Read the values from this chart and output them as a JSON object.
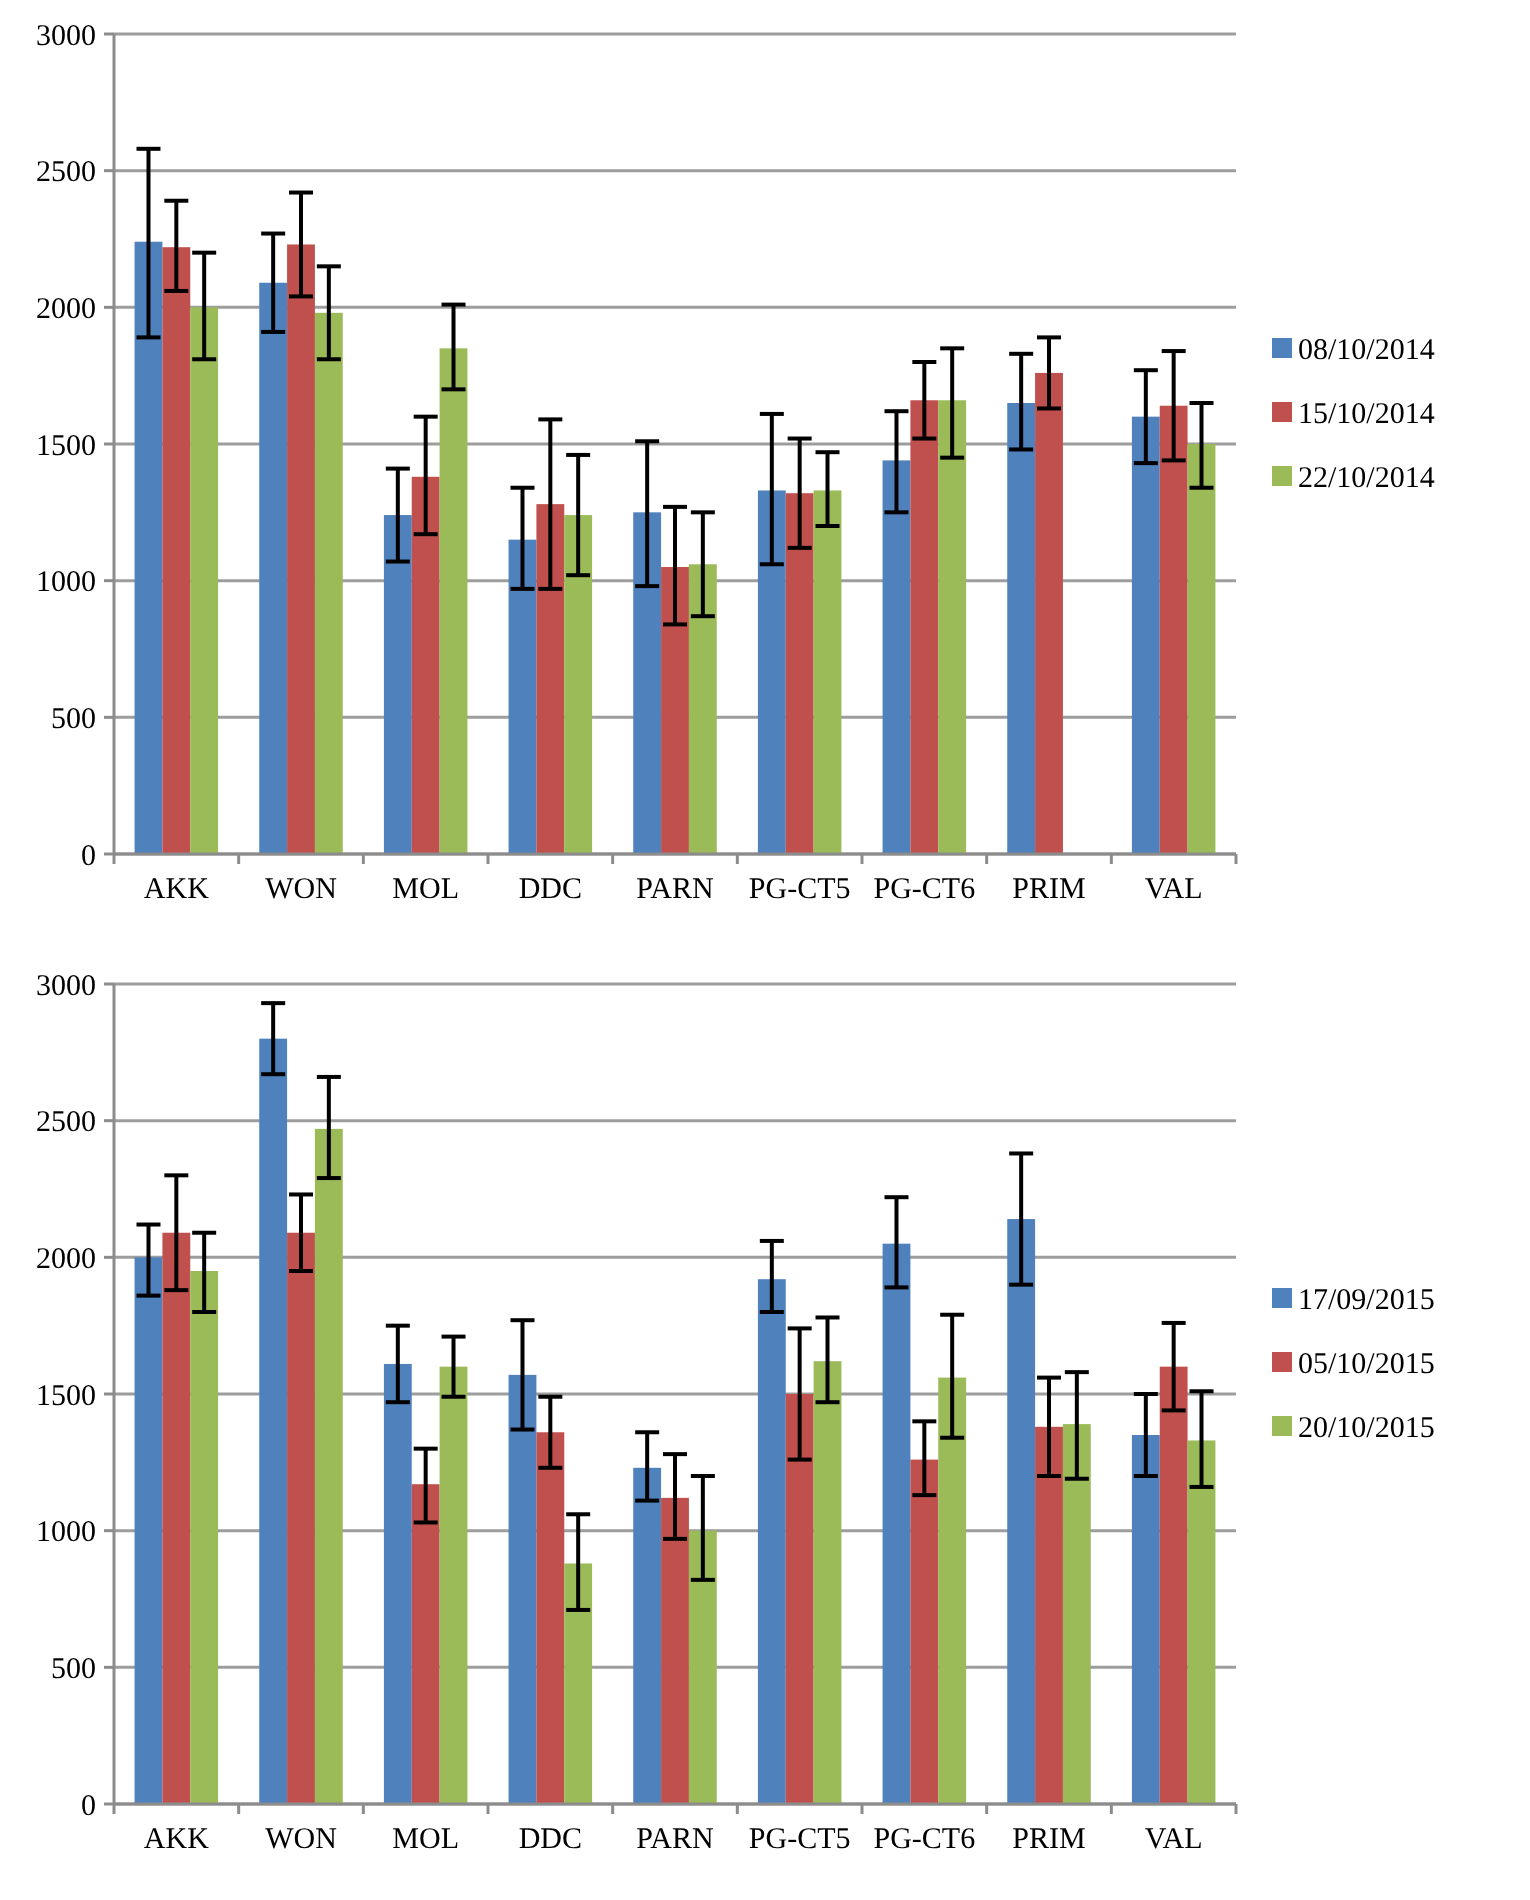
{
  "chart_data": [
    {
      "type": "bar",
      "categories": [
        "AKK",
        "WON",
        "MOL",
        "DDC",
        "PARN",
        "PG-CT5",
        "PG-CT6",
        "PRIM",
        "VAL"
      ],
      "ylim": [
        0,
        3000
      ],
      "yticks": [
        0,
        500,
        1000,
        1500,
        2000,
        2500,
        3000
      ],
      "grid": "y",
      "legend": "right",
      "series": [
        {
          "name": "08/10/2014",
          "color": "#4f81bd",
          "values": [
            2240,
            2090,
            1240,
            1150,
            1250,
            1330,
            1440,
            1650,
            1600
          ],
          "errors": [
            [
              1890,
              2580
            ],
            [
              1910,
              2270
            ],
            [
              1070,
              1410
            ],
            [
              970,
              1340
            ],
            [
              980,
              1510
            ],
            [
              1060,
              1610
            ],
            [
              1250,
              1620
            ],
            [
              1480,
              1830
            ],
            [
              1430,
              1770
            ]
          ]
        },
        {
          "name": "15/10/2014",
          "color": "#c0504d",
          "values": [
            2220,
            2230,
            1380,
            1280,
            1050,
            1320,
            1660,
            1760,
            1640
          ],
          "errors": [
            [
              2060,
              2390
            ],
            [
              2040,
              2420
            ],
            [
              1170,
              1600
            ],
            [
              970,
              1590
            ],
            [
              840,
              1270
            ],
            [
              1120,
              1520
            ],
            [
              1520,
              1800
            ],
            [
              1630,
              1890
            ],
            [
              1440,
              1840
            ]
          ]
        },
        {
          "name": "22/10/2014",
          "color": "#9bbb59",
          "values": [
            2000,
            1980,
            1850,
            1240,
            1060,
            1330,
            1660,
            null,
            1500
          ],
          "errors": [
            [
              1810,
              2200
            ],
            [
              1810,
              2150
            ],
            [
              1700,
              2010
            ],
            [
              1020,
              1460
            ],
            [
              870,
              1250
            ],
            [
              1200,
              1470
            ],
            [
              1450,
              1850
            ],
            null,
            [
              1340,
              1650
            ]
          ]
        }
      ]
    },
    {
      "type": "bar",
      "categories": [
        "AKK",
        "WON",
        "MOL",
        "DDC",
        "PARN",
        "PG-CT5",
        "PG-CT6",
        "PRIM",
        "VAL"
      ],
      "ylim": [
        0,
        3000
      ],
      "yticks": [
        0,
        500,
        1000,
        1500,
        2000,
        2500,
        3000
      ],
      "grid": "y",
      "legend": "right",
      "series": [
        {
          "name": "17/09/2015",
          "color": "#4f81bd",
          "values": [
            2000,
            2800,
            1610,
            1570,
            1230,
            1920,
            2050,
            2140,
            1350
          ],
          "errors": [
            [
              1860,
              2120
            ],
            [
              2670,
              2930
            ],
            [
              1470,
              1750
            ],
            [
              1370,
              1770
            ],
            [
              1110,
              1360
            ],
            [
              1800,
              2060
            ],
            [
              1890,
              2220
            ],
            [
              1900,
              2380
            ],
            [
              1200,
              1500
            ]
          ]
        },
        {
          "name": "05/10/2015",
          "color": "#c0504d",
          "values": [
            2090,
            2090,
            1170,
            1360,
            1120,
            1500,
            1260,
            1380,
            1600
          ],
          "errors": [
            [
              1880,
              2300
            ],
            [
              1950,
              2230
            ],
            [
              1030,
              1300
            ],
            [
              1230,
              1490
            ],
            [
              970,
              1280
            ],
            [
              1260,
              1740
            ],
            [
              1130,
              1400
            ],
            [
              1200,
              1560
            ],
            [
              1440,
              1760
            ]
          ]
        },
        {
          "name": "20/10/2015",
          "color": "#9bbb59",
          "values": [
            1950,
            2470,
            1600,
            880,
            1000,
            1620,
            1560,
            1390,
            1330
          ],
          "errors": [
            [
              1800,
              2090
            ],
            [
              2290,
              2660
            ],
            [
              1490,
              1710
            ],
            [
              710,
              1060
            ],
            [
              820,
              1200
            ],
            [
              1470,
              1780
            ],
            [
              1340,
              1790
            ],
            [
              1190,
              1580
            ],
            [
              1160,
              1510
            ]
          ]
        }
      ]
    }
  ]
}
